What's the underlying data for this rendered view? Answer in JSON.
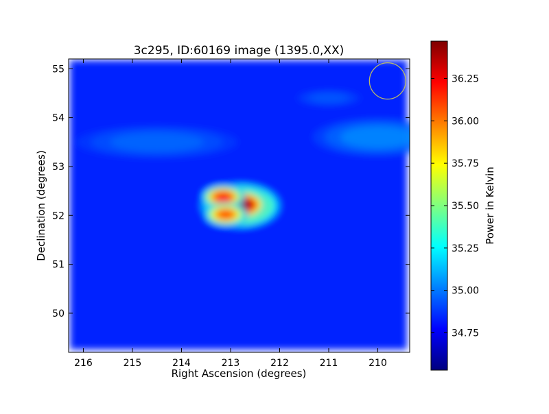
{
  "chart_data": {
    "type": "heatmap",
    "title": "3c295, ID:60169 image (1395.0,XX)",
    "xlabel": "Right Ascension (degrees)",
    "ylabel": "Declination (degrees)",
    "xlim": [
      216.3,
      209.35
    ],
    "ylim": [
      49.2,
      55.2
    ],
    "x_ticks": [
      216,
      215,
      214,
      213,
      212,
      211,
      210
    ],
    "y_ticks": [
      50,
      51,
      52,
      53,
      54,
      55
    ],
    "colorbar": {
      "label": "Power in Kelvin",
      "range": [
        34.53,
        36.47
      ],
      "ticks": [
        34.75,
        35.0,
        35.25,
        35.5,
        35.75,
        36.0,
        36.25
      ],
      "tick_labels": [
        "34.75",
        "35.00",
        "35.25",
        "35.50",
        "35.75",
        "36.00",
        "36.25"
      ],
      "colormap": "jet"
    },
    "background_level": 34.84,
    "features": [
      {
        "kind": "source",
        "ra": 212.75,
        "dec": 52.22,
        "peak": 36.45,
        "width_ra": 0.45,
        "width_dec": 0.28
      },
      {
        "kind": "source",
        "ra": 213.15,
        "dec": 52.38,
        "peak": 36.2,
        "width_ra": 0.4,
        "width_dec": 0.22
      },
      {
        "kind": "source",
        "ra": 213.1,
        "dec": 52.02,
        "peak": 36.1,
        "width_ra": 0.4,
        "width_dec": 0.22
      },
      {
        "kind": "halo",
        "ra": 212.8,
        "dec": 52.2,
        "peak": 35.95,
        "width_ra": 0.75,
        "width_dec": 0.42
      },
      {
        "kind": "band",
        "ra": 210.0,
        "dec": 53.6,
        "peak": 35.05,
        "width_ra": 1.2,
        "width_dec": 0.35
      },
      {
        "kind": "band",
        "ra": 214.5,
        "dec": 53.5,
        "peak": 34.98,
        "width_ra": 1.5,
        "width_dec": 0.3
      },
      {
        "kind": "band",
        "ra": 211.0,
        "dec": 54.4,
        "peak": 34.95,
        "width_ra": 0.6,
        "width_dec": 0.15
      }
    ],
    "beam_circle": {
      "ra": 209.8,
      "dec": 54.75,
      "radius_deg": 0.37,
      "color": "#b8b86a"
    }
  }
}
